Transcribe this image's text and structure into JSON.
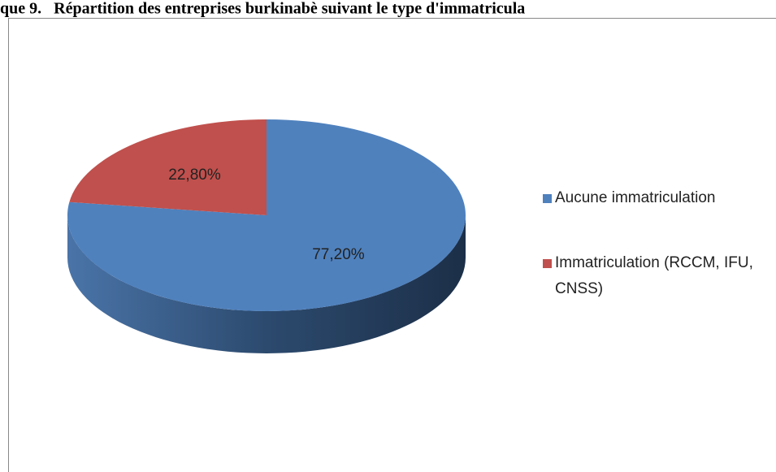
{
  "chart_data": {
    "type": "pie",
    "title": "que 9.   Répartition des entreprises burkinabè suivant le type d'immatricula",
    "categories": [
      "Aucune immatriculation",
      "Immatriculation (RCCM, IFU, CNSS)"
    ],
    "values": [
      77.2,
      22.8
    ],
    "value_labels": [
      "77,20%",
      "22,80%"
    ],
    "colors": [
      "#4f81bd",
      "#c0504d"
    ],
    "legend": "right"
  }
}
